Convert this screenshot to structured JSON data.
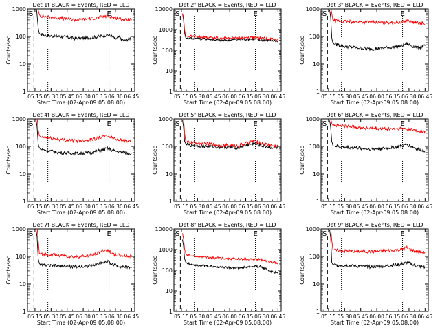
{
  "chart_data": [
    {
      "type": "line",
      "title": "Det 1f BLACK = Events, RED = LLD",
      "xlabel": "Start Time (02-Apr-09 05:08:00)",
      "ylabel": "Counts/sec",
      "yscale": "log",
      "ylim": [
        1,
        1000
      ],
      "xticks": [
        "05:15",
        "05:30",
        "05:45",
        "06:00",
        "06:15",
        "06:30",
        "06:45"
      ],
      "yticks": [
        "1",
        "10",
        "100",
        "1000"
      ],
      "markers": {
        "start": "S",
        "end": "E"
      },
      "series": [
        {
          "color": "#000000",
          "x_min": [
            8,
            9,
            10,
            11,
            12,
            15,
            20,
            30,
            45,
            60,
            75,
            80,
            82,
            85,
            90,
            97
          ],
          "values": [
            1200,
            600,
            200,
            130,
            120,
            115,
            105,
            100,
            85,
            90,
            115,
            95,
            80,
            95,
            70,
            90
          ]
        },
        {
          "color": "#ff0000",
          "x_min": [
            8,
            9,
            10,
            11,
            12,
            15,
            20,
            30,
            45,
            60,
            75,
            80,
            85,
            90,
            97
          ],
          "values": [
            1200,
            1200,
            900,
            650,
            550,
            550,
            500,
            470,
            400,
            450,
            550,
            500,
            450,
            420,
            400
          ]
        }
      ]
    },
    {
      "type": "line",
      "title": "Det 2f BLACK = Events, RED = LLD",
      "xlabel": "Start Time (02-Apr-09 05:08:00)",
      "ylabel": "Counts/sec",
      "yscale": "log",
      "ylim": [
        1,
        10000
      ],
      "xticks": [
        "05:15",
        "05:30",
        "05:45",
        "06:00",
        "06:15",
        "06:30",
        "06:45"
      ],
      "yticks": [
        "1",
        "10",
        "100",
        "1000",
        "10000"
      ],
      "markers": {
        "start": "S",
        "end": "E"
      },
      "series": [
        {
          "color": "#000000",
          "x_min": [
            8,
            9,
            10,
            11,
            12,
            15,
            20,
            30,
            45,
            60,
            75,
            80,
            85,
            90,
            97
          ],
          "values": [
            6000,
            3000,
            700,
            400,
            380,
            380,
            370,
            350,
            300,
            330,
            350,
            300,
            320,
            300,
            260
          ]
        },
        {
          "color": "#ff0000",
          "x_min": [
            8,
            9,
            10,
            11,
            12,
            15,
            20,
            30,
            45,
            60,
            75,
            80,
            85,
            90,
            97
          ],
          "values": [
            6000,
            4000,
            900,
            500,
            480,
            480,
            460,
            430,
            380,
            400,
            420,
            380,
            380,
            360,
            330
          ]
        }
      ]
    },
    {
      "type": "line",
      "title": "Det 3f BLACK = Events, RED = LLD",
      "xlabel": "Start Time (02-Apr-09 05:08:00)",
      "ylabel": "Counts/sec",
      "yscale": "log",
      "ylim": [
        1,
        1000
      ],
      "xticks": [
        "05:15",
        "05:30",
        "05:45",
        "06:00",
        "06:15",
        "06:30",
        "06:45"
      ],
      "yticks": [
        "1",
        "10",
        "100",
        "1000"
      ],
      "markers": {
        "start": "S",
        "end": "E"
      },
      "series": [
        {
          "color": "#000000",
          "x_min": [
            8,
            9,
            10,
            11,
            12,
            15,
            20,
            30,
            45,
            60,
            75,
            80,
            85,
            90,
            97
          ],
          "values": [
            900,
            500,
            90,
            60,
            55,
            50,
            45,
            40,
            35,
            38,
            45,
            55,
            45,
            38,
            45
          ]
        },
        {
          "color": "#ff0000",
          "x_min": [
            8,
            9,
            10,
            11,
            12,
            15,
            20,
            30,
            45,
            60,
            75,
            80,
            85,
            90,
            97
          ],
          "values": [
            1200,
            1200,
            700,
            400,
            380,
            370,
            350,
            340,
            330,
            320,
            330,
            380,
            320,
            310,
            300
          ]
        }
      ]
    },
    {
      "type": "line",
      "title": "Det 4f BLACK = Events, RED = LLD",
      "xlabel": "Start Time (02-Apr-09 05:08:00)",
      "ylabel": "Counts/sec",
      "yscale": "log",
      "ylim": [
        1,
        1000
      ],
      "xticks": [
        "05:15",
        "05:30",
        "05:45",
        "06:00",
        "06:15",
        "06:30",
        "06:45"
      ],
      "yticks": [
        "1",
        "10",
        "100",
        "1000"
      ],
      "markers": {
        "start": "S",
        "end": "E"
      },
      "series": [
        {
          "color": "#000000",
          "x_min": [
            8,
            9,
            10,
            11,
            12,
            15,
            20,
            30,
            45,
            60,
            70,
            75,
            80,
            85,
            90,
            97
          ],
          "values": [
            900,
            500,
            120,
            90,
            80,
            75,
            70,
            60,
            55,
            60,
            75,
            85,
            70,
            65,
            60,
            55
          ]
        },
        {
          "color": "#ff0000",
          "x_min": [
            8,
            9,
            10,
            11,
            12,
            15,
            20,
            30,
            45,
            60,
            70,
            75,
            80,
            85,
            90,
            97
          ],
          "values": [
            1200,
            1100,
            400,
            250,
            220,
            210,
            200,
            180,
            160,
            180,
            220,
            240,
            200,
            180,
            160,
            150
          ]
        }
      ]
    },
    {
      "type": "line",
      "title": "Det 5f BLACK = Events, RED = LLD",
      "xlabel": "Start Time (02-Apr-09 05:08:00)",
      "ylabel": "Counts/sec",
      "yscale": "log",
      "ylim": [
        1,
        1000
      ],
      "xticks": [
        "05:15",
        "05:30",
        "05:45",
        "06:00",
        "06:15",
        "06:30",
        "06:45"
      ],
      "yticks": [
        "1",
        "10",
        "100",
        "1000"
      ],
      "markers": {
        "start": "S",
        "end": "E"
      },
      "series": [
        {
          "color": "#000000",
          "x_min": [
            8,
            9,
            10,
            11,
            12,
            15,
            20,
            30,
            45,
            60,
            70,
            75,
            80,
            85,
            90,
            97
          ],
          "values": [
            900,
            500,
            150,
            120,
            115,
            110,
            110,
            100,
            95,
            90,
            115,
            130,
            110,
            100,
            90,
            90
          ]
        },
        {
          "color": "#ff0000",
          "x_min": [
            8,
            9,
            10,
            11,
            12,
            15,
            20,
            30,
            45,
            60,
            70,
            75,
            80,
            85,
            90,
            97
          ],
          "values": [
            1200,
            1100,
            300,
            150,
            140,
            140,
            135,
            125,
            110,
            105,
            140,
            160,
            135,
            120,
            110,
            100
          ]
        }
      ]
    },
    {
      "type": "line",
      "title": "Det 6f BLACK = Events, RED = LLD",
      "xlabel": "Start Time (02-Apr-09 05:08:00)",
      "ylabel": "Counts/sec",
      "yscale": "log",
      "ylim": [
        1,
        1000
      ],
      "xticks": [
        "05:15",
        "05:30",
        "05:45",
        "06:00",
        "06:15",
        "06:30",
        "06:45"
      ],
      "yticks": [
        "1",
        "10",
        "100",
        "1000"
      ],
      "markers": {
        "start": "S",
        "end": "E"
      },
      "series": [
        {
          "color": "#000000",
          "x_min": [
            8,
            9,
            10,
            11,
            12,
            15,
            20,
            30,
            45,
            60,
            75,
            80,
            85,
            90,
            97
          ],
          "values": [
            900,
            500,
            150,
            110,
            105,
            100,
            95,
            90,
            80,
            85,
            100,
            120,
            95,
            80,
            70
          ]
        },
        {
          "color": "#ff0000",
          "x_min": [
            8,
            9,
            10,
            11,
            12,
            15,
            20,
            30,
            45,
            60,
            75,
            80,
            85,
            90,
            97
          ],
          "values": [
            1200,
            1100,
            700,
            600,
            600,
            580,
            560,
            520,
            450,
            430,
            440,
            440,
            400,
            360,
            340
          ]
        }
      ]
    },
    {
      "type": "line",
      "title": "Det 7f BLACK = Events, RED = LLD",
      "xlabel": "Start Time (02-Apr-09 05:08:00)",
      "ylabel": "Counts/sec",
      "yscale": "log",
      "ylim": [
        1,
        1000
      ],
      "xticks": [
        "05:15",
        "05:30",
        "05:45",
        "06:00",
        "06:15",
        "06:30",
        "06:45"
      ],
      "yticks": [
        "1",
        "10",
        "100",
        "1000"
      ],
      "markers": {
        "start": "S",
        "end": "E"
      },
      "series": [
        {
          "color": "#000000",
          "x_min": [
            8,
            9,
            10,
            11,
            12,
            15,
            20,
            30,
            45,
            60,
            70,
            75,
            80,
            85,
            90,
            97
          ],
          "values": [
            900,
            500,
            80,
            55,
            50,
            48,
            45,
            45,
            42,
            45,
            60,
            65,
            50,
            45,
            42,
            40
          ]
        },
        {
          "color": "#ff0000",
          "x_min": [
            8,
            9,
            10,
            11,
            12,
            15,
            20,
            30,
            45,
            60,
            70,
            75,
            80,
            85,
            90,
            97
          ],
          "values": [
            1200,
            1100,
            400,
            130,
            120,
            120,
            115,
            110,
            95,
            110,
            160,
            170,
            120,
            110,
            105,
            100
          ]
        }
      ]
    },
    {
      "type": "line",
      "title": "Det 8f BLACK = Events, RED = LLD",
      "xlabel": "Start Time (02-Apr-09 05:08:00)",
      "ylabel": "Counts/sec",
      "yscale": "log",
      "ylim": [
        1,
        10000
      ],
      "xticks": [
        "05:15",
        "05:30",
        "05:45",
        "06:00",
        "06:15",
        "06:30",
        "06:45"
      ],
      "yticks": [
        "1",
        "10",
        "100",
        "1000",
        "10000"
      ],
      "markers": {
        "start": "S",
        "end": "E"
      },
      "series": [
        {
          "color": "#000000",
          "x_min": [
            8,
            9,
            10,
            11,
            12,
            15,
            20,
            30,
            45,
            60,
            75,
            80,
            85,
            90,
            97
          ],
          "values": [
            3000,
            1500,
            350,
            250,
            220,
            200,
            180,
            160,
            140,
            130,
            150,
            150,
            120,
            90,
            70
          ]
        },
        {
          "color": "#ff0000",
          "x_min": [
            8,
            9,
            10,
            11,
            12,
            15,
            20,
            30,
            45,
            60,
            75,
            80,
            85,
            90,
            97
          ],
          "values": [
            6000,
            3500,
            1000,
            650,
            550,
            500,
            460,
            420,
            380,
            350,
            330,
            340,
            300,
            260,
            230
          ]
        }
      ]
    },
    {
      "type": "line",
      "title": "Det 9f BLACK = Events, RED = LLD",
      "xlabel": "Start Time (02-Apr-09 05:08:00)",
      "ylabel": "Counts/sec",
      "yscale": "log",
      "ylim": [
        1,
        1000
      ],
      "xticks": [
        "05:15",
        "05:30",
        "05:45",
        "06:00",
        "06:15",
        "06:30",
        "06:45"
      ],
      "yticks": [
        "1",
        "10",
        "100",
        "1000"
      ],
      "markers": {
        "start": "S",
        "end": "E"
      },
      "series": [
        {
          "color": "#000000",
          "x_min": [
            8,
            9,
            10,
            11,
            12,
            15,
            20,
            30,
            45,
            60,
            75,
            80,
            85,
            90,
            97
          ],
          "values": [
            900,
            500,
            60,
            50,
            50,
            48,
            48,
            45,
            42,
            45,
            52,
            60,
            50,
            45,
            40
          ]
        },
        {
          "color": "#ff0000",
          "x_min": [
            8,
            9,
            10,
            11,
            12,
            15,
            20,
            30,
            45,
            60,
            75,
            80,
            85,
            90,
            97
          ],
          "values": [
            1200,
            1100,
            400,
            180,
            170,
            165,
            160,
            155,
            150,
            160,
            180,
            210,
            170,
            150,
            140
          ]
        }
      ]
    }
  ]
}
